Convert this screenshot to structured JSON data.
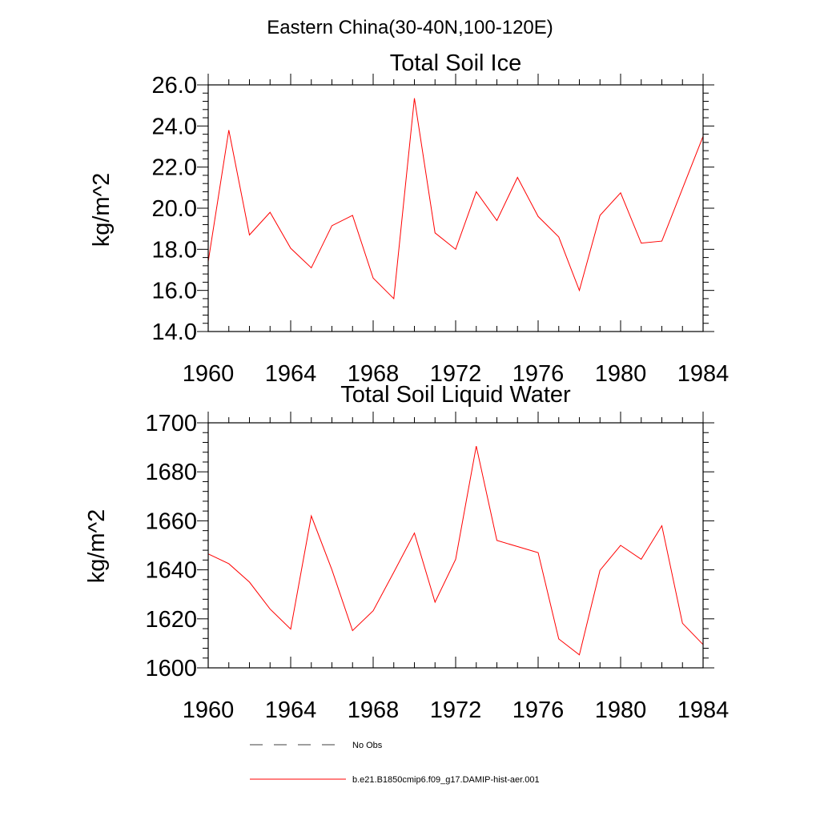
{
  "figure": {
    "suptitle": "Eastern China(30-40N,100-120E)"
  },
  "chart_data": [
    {
      "type": "line",
      "title": "Total Soil Ice",
      "xlabel": "",
      "ylabel": "kg/m^2",
      "xlim": [
        1960,
        1984
      ],
      "ylim": [
        14.0,
        26.0
      ],
      "xticks": [
        "1960",
        "1964",
        "1968",
        "1972",
        "1976",
        "1980",
        "1984"
      ],
      "yticks": [
        "14.0",
        "16.0",
        "18.0",
        "20.0",
        "22.0",
        "24.0",
        "26.0"
      ],
      "grid": false,
      "series": [
        {
          "name": "b.e21.B1850cmip6.f09_g17.DAMIP-hist-aer.001",
          "color": "#ff0000",
          "x": [
            1960,
            1961,
            1962,
            1963,
            1964,
            1965,
            1966,
            1967,
            1968,
            1969,
            1970,
            1971,
            1972,
            1973,
            1974,
            1975,
            1976,
            1977,
            1978,
            1979,
            1980,
            1981,
            1982,
            1983,
            1984
          ],
          "values": [
            17.4,
            23.8,
            18.7,
            19.8,
            18.05,
            17.1,
            19.15,
            19.65,
            16.6,
            15.6,
            25.35,
            18.8,
            18.0,
            20.8,
            19.4,
            21.5,
            19.6,
            18.6,
            16.0,
            19.65,
            20.75,
            18.3,
            18.4,
            20.95,
            23.5
          ]
        }
      ]
    },
    {
      "type": "line",
      "title": "Total Soil Liquid Water",
      "xlabel": "",
      "ylabel": "kg/m^2",
      "xlim": [
        1960,
        1984
      ],
      "ylim": [
        1600,
        1700
      ],
      "xticks": [
        "1960",
        "1964",
        "1968",
        "1972",
        "1976",
        "1980",
        "1984"
      ],
      "yticks": [
        "1600",
        "1620",
        "1640",
        "1660",
        "1680",
        "1700"
      ],
      "grid": false,
      "series": [
        {
          "name": "b.e21.B1850cmip6.f09_g17.DAMIP-hist-aer.001",
          "color": "#ff0000",
          "x": [
            1960,
            1961,
            1962,
            1963,
            1964,
            1965,
            1966,
            1967,
            1968,
            1969,
            1970,
            1971,
            1972,
            1973,
            1974,
            1975,
            1976,
            1977,
            1978,
            1979,
            1980,
            1981,
            1982,
            1983,
            1984
          ],
          "values": [
            1646.5,
            1642.5,
            1635,
            1624,
            1615.8,
            1662,
            1640,
            1615.2,
            1623.3,
            1639,
            1655,
            1626.8,
            1644.3,
            1690.5,
            1652,
            1649.5,
            1647,
            1611.8,
            1605.3,
            1639.8,
            1650,
            1644.3,
            1658,
            1618.2,
            1609.5
          ]
        }
      ]
    }
  ],
  "legend": {
    "entries": [
      {
        "label": "No Obs",
        "style": "dashed",
        "color": "#000000"
      },
      {
        "label": "b.e21.B1850cmip6.f09_g17.DAMIP-hist-aer.001",
        "style": "solid",
        "color": "#ff0000"
      }
    ]
  }
}
